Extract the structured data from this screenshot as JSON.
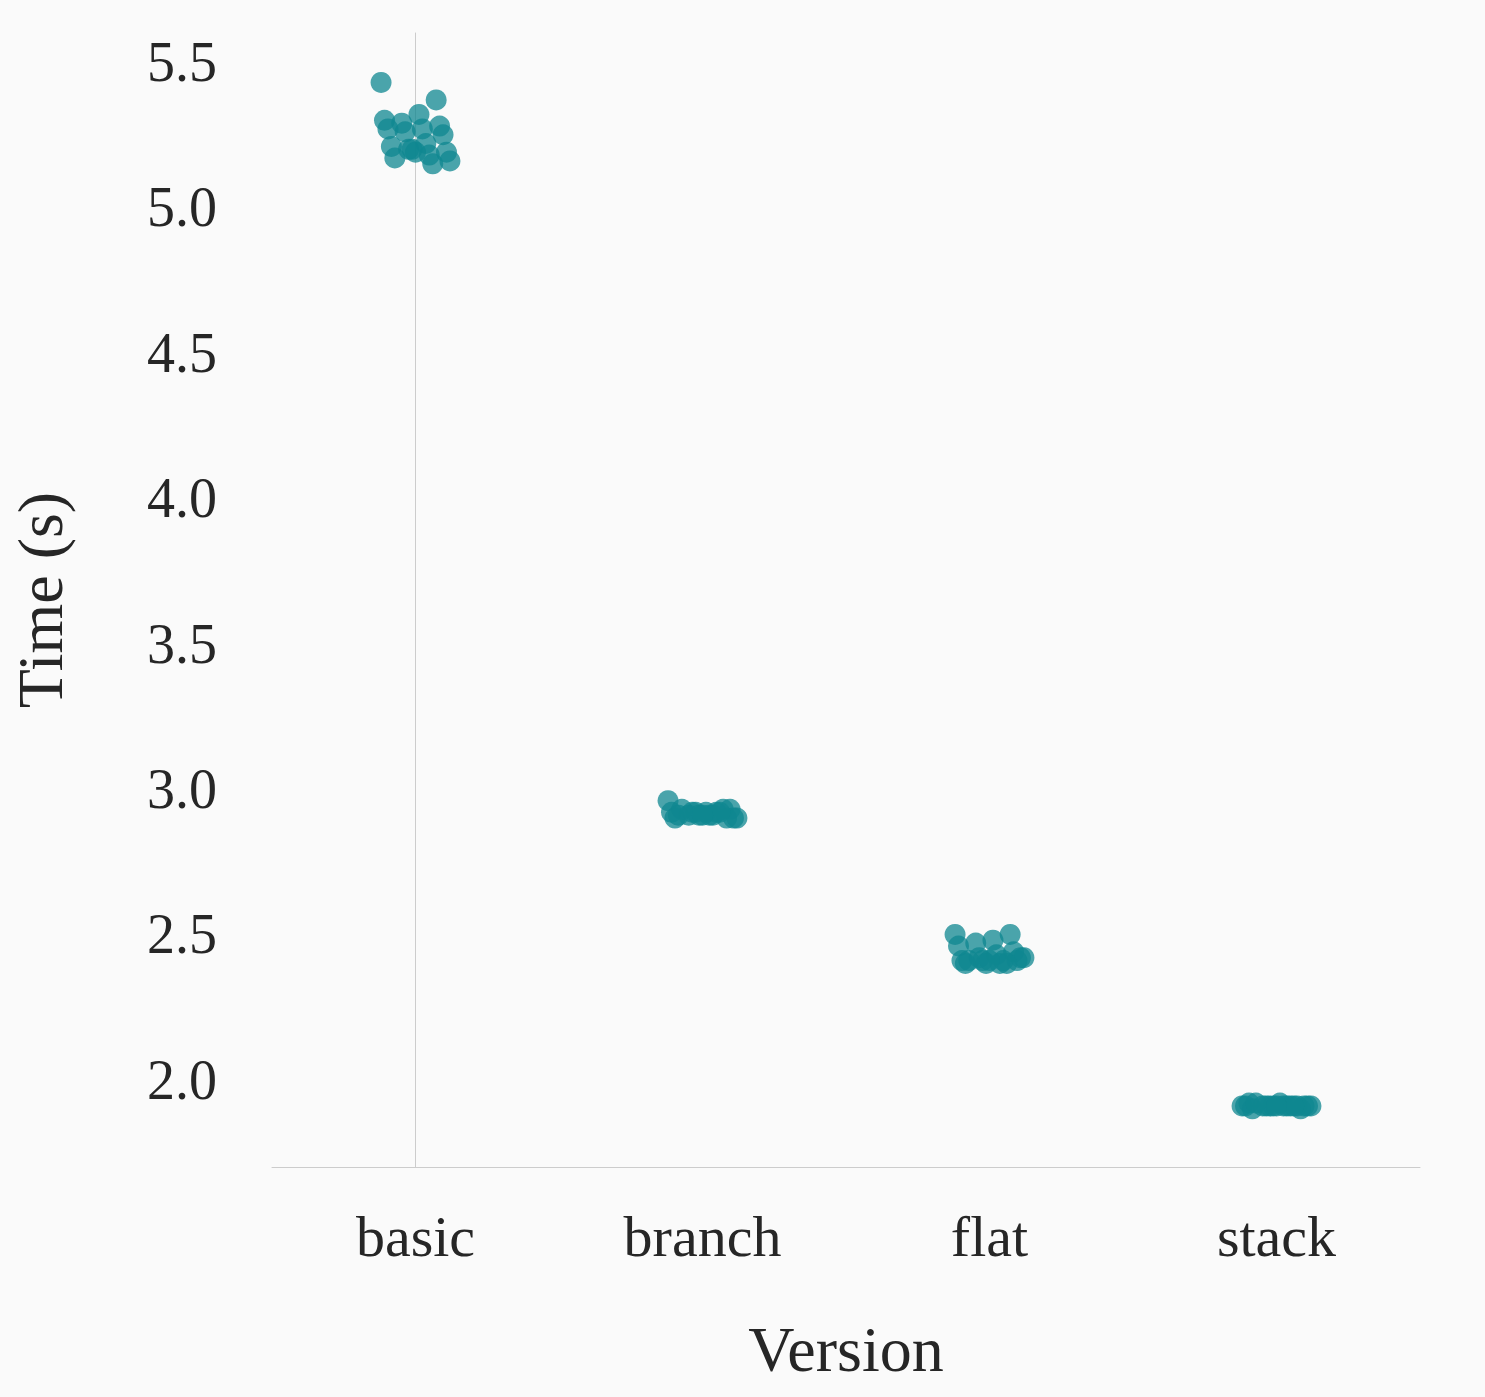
{
  "chart_data": {
    "type": "scatter",
    "x_label": "Version",
    "y_label": "Time (s)",
    "categories": [
      "basic",
      "branch",
      "flat",
      "stack"
    ],
    "values": [
      [
        5.43,
        5.37,
        5.32,
        5.29,
        5.3,
        5.28,
        5.27,
        5.26,
        5.27,
        5.25,
        5.22,
        5.2,
        5.21,
        5.19,
        5.18,
        5.2,
        5.17,
        5.16,
        5.15,
        5.19
      ],
      [
        2.96,
        2.93,
        2.92,
        2.91,
        2.92,
        2.9,
        2.91,
        2.92,
        2.9,
        2.93,
        2.91,
        2.92,
        2.91,
        2.9,
        2.92,
        2.91,
        2.93,
        2.9,
        2.92,
        2.91
      ],
      [
        2.5,
        2.5,
        2.48,
        2.47,
        2.46,
        2.44,
        2.43,
        2.42,
        2.41,
        2.41,
        2.4,
        2.41,
        2.4,
        2.42,
        2.41,
        2.4,
        2.41,
        2.42,
        2.4,
        2.41
      ],
      [
        1.91,
        1.91,
        1.92,
        1.91,
        1.91,
        1.9,
        1.91,
        1.91,
        1.92,
        1.91,
        1.91,
        1.91,
        1.9,
        1.91,
        1.91,
        1.91,
        1.92,
        1.91,
        1.91,
        1.91
      ]
    ],
    "color": "#0f8790",
    "marker": "circle",
    "ylim": [
      1.7,
      5.6
    ],
    "yticks": [
      {
        "value": 2,
        "label": "2.0"
      },
      2.5,
      {
        "value": 3,
        "label": "3.0"
      },
      3.5,
      {
        "value": 4,
        "label": "4.0"
      },
      4.5,
      {
        "value": 5,
        "label": "5.0"
      },
      5.5
    ],
    "grid": false
  }
}
